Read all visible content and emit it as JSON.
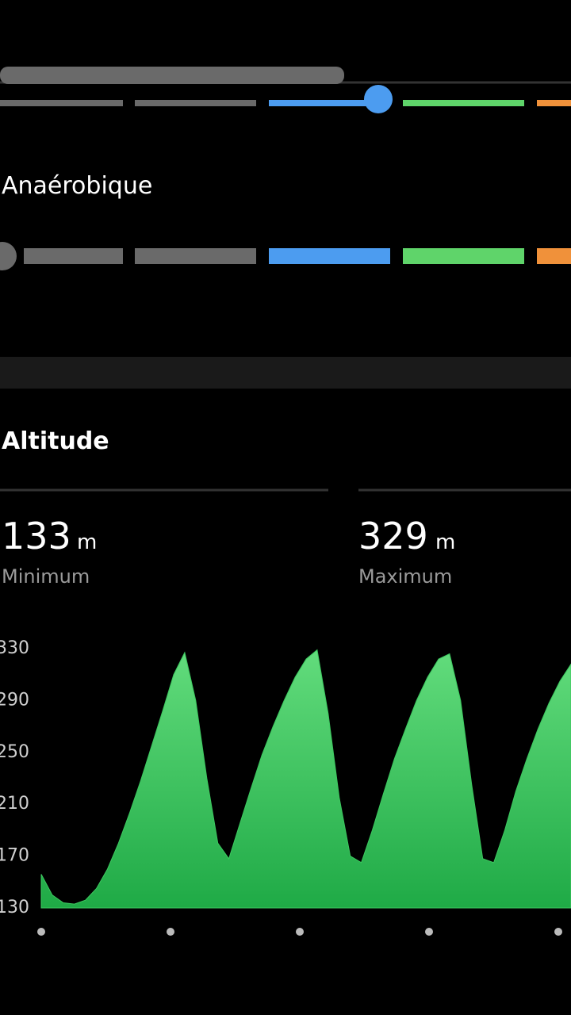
{
  "zone_label": "Anaérobique",
  "section_title": "Altitude",
  "stats": [
    {
      "value": "133",
      "unit": "m",
      "label": "Minimum"
    },
    {
      "value": "329",
      "unit": "m",
      "label": "Maximum"
    }
  ],
  "chart_data": {
    "type": "area",
    "values": [
      156,
      140,
      134,
      133,
      136,
      145,
      160,
      180,
      203,
      228,
      255,
      282,
      310,
      327,
      290,
      230,
      180,
      168,
      195,
      222,
      248,
      270,
      290,
      308,
      322,
      329,
      280,
      215,
      170,
      165,
      190,
      218,
      245,
      268,
      290,
      308,
      322,
      326,
      290,
      225,
      168,
      165,
      190,
      220,
      245,
      268,
      288,
      305,
      318
    ],
    "color": "#3cc85f",
    "ylim": [
      130,
      330
    ],
    "yticks": [
      330,
      290,
      250,
      210,
      170,
      130
    ]
  }
}
